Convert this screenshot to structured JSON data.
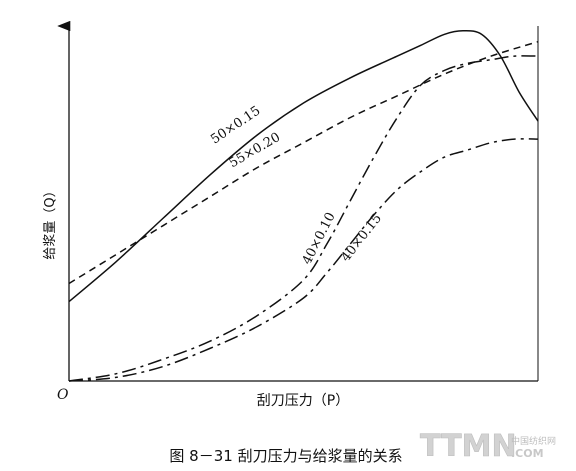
{
  "chart_data": {
    "type": "line",
    "title": "",
    "caption": "图 8－31    刮刀压力与给浆量的关系",
    "xlabel": "刮刀压力（P）",
    "ylabel": "给浆量（Q）",
    "origin_label": "O",
    "xlim": [
      0,
      100
    ],
    "ylim": [
      0,
      100
    ],
    "grid": false,
    "legend": "none",
    "series": [
      {
        "name": "50×0.15",
        "style": "solid",
        "x": [
          0,
          10,
          20,
          30,
          40,
          50,
          60,
          70,
          75,
          80,
          84,
          88,
          92,
          96,
          100
        ],
        "y": [
          22,
          33,
          45,
          57,
          68,
          77,
          84,
          90,
          93,
          96,
          97,
          96,
          90,
          80,
          72
        ]
      },
      {
        "name": "55×0.20",
        "style": "dashed",
        "x": [
          0,
          10,
          20,
          30,
          40,
          50,
          60,
          70,
          80,
          90,
          100
        ],
        "y": [
          27,
          35,
          43,
          51,
          59,
          66,
          73,
          79,
          85,
          90,
          94
        ]
      },
      {
        "name": "40×0.10",
        "style": "dashdot",
        "x": [
          0,
          10,
          20,
          30,
          40,
          50,
          55,
          60,
          65,
          70,
          75,
          80,
          85,
          90,
          95,
          100
        ],
        "y": [
          0,
          2,
          6,
          11,
          18,
          28,
          38,
          50,
          62,
          73,
          82,
          86,
          88,
          89,
          90,
          90
        ]
      },
      {
        "name": "40×0.15",
        "style": "dashdot",
        "x": [
          0,
          10,
          20,
          30,
          40,
          50,
          55,
          60,
          65,
          70,
          75,
          80,
          85,
          90,
          95,
          100
        ],
        "y": [
          0,
          1,
          4,
          9,
          15,
          23,
          30,
          38,
          46,
          53,
          58,
          62,
          64,
          66,
          67,
          67
        ]
      }
    ],
    "annotations": [
      {
        "text": "50×0.15",
        "series": "50×0.15",
        "at_x": 36,
        "at_y": 70,
        "angle": -34
      },
      {
        "text": "55×0.20",
        "series": "55×0.20",
        "at_x": 40,
        "at_y": 63,
        "angle": -30
      },
      {
        "text": "40×0.10",
        "series": "40×0.10",
        "at_x": 54,
        "at_y": 39,
        "angle": -63
      },
      {
        "text": "40×0.15",
        "series": "40×0.15",
        "at_x": 63,
        "at_y": 39,
        "angle": -52
      }
    ],
    "colors": {
      "ink": "#111111",
      "watermark": "#c8c8c8"
    }
  },
  "watermark": {
    "text": "TTMN",
    "sub_text": "中国纺织网",
    "domain": ".COM"
  }
}
